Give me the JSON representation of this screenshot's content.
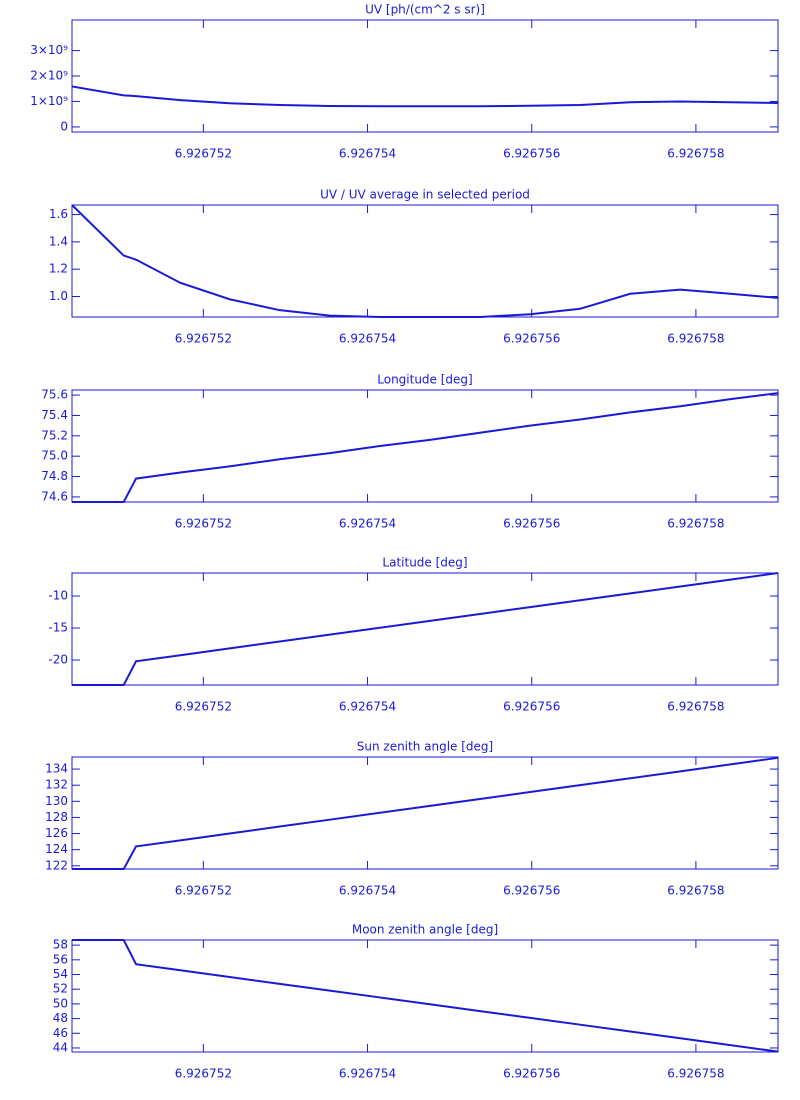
{
  "chart_data": [
    {
      "type": "line",
      "title": "UV [ph/(cm^2 s sr)]",
      "color": "#1a1ad6",
      "x": [
        6.9267504,
        6.92675103,
        6.92675118,
        6.92675172,
        6.92675232,
        6.92675293,
        6.92675354,
        6.92675415,
        6.92675476,
        6.92675537,
        6.92675598,
        6.92675659,
        6.9267572,
        6.92675781,
        6.92675842,
        6.926759
      ],
      "values": [
        1590000000,
        1240000000,
        1210000000,
        1050000000,
        930000000,
        860000000,
        820000000,
        810000000,
        810000000,
        810000000,
        830000000,
        860000000,
        970000000,
        1000000000,
        970000000,
        940000000
      ],
      "xlim": [
        6.9267504,
        6.926759
      ],
      "xticks": [
        6.926752,
        6.926754,
        6.926756,
        6.926758
      ],
      "ylim": [
        -200000000,
        4200000000
      ],
      "yticks": [
        0,
        {
          "value": 1000000000,
          "label": "1×10⁹"
        },
        {
          "value": 2000000000,
          "label": "2×10⁹"
        },
        {
          "value": 3000000000,
          "label": "3×10⁹"
        }
      ]
    },
    {
      "type": "line",
      "title": "UV / UV average in selected period",
      "color": "#1a1ad6",
      "x": [
        6.9267504,
        6.92675103,
        6.92675118,
        6.92675172,
        6.92675232,
        6.92675293,
        6.92675354,
        6.92675415,
        6.92675476,
        6.92675537,
        6.92675598,
        6.92675659,
        6.9267572,
        6.92675781,
        6.92675842,
        6.926759
      ],
      "values": [
        1.67,
        1.3,
        1.27,
        1.1,
        0.98,
        0.9,
        0.86,
        0.85,
        0.85,
        0.85,
        0.87,
        0.91,
        1.02,
        1.05,
        1.02,
        0.99
      ],
      "xlim": [
        6.9267504,
        6.926759
      ],
      "xticks": [
        6.926752,
        6.926754,
        6.926756,
        6.926758
      ],
      "ylim": [
        0.85,
        1.67
      ],
      "yticks": [
        {
          "value": 1,
          "label": "1.0"
        },
        1.2,
        1.4,
        1.6
      ]
    },
    {
      "type": "line",
      "title": "Longitude [deg]",
      "color": "#1a1ad6",
      "x": [
        6.9267504,
        6.92675103,
        6.92675118,
        6.92675172,
        6.92675232,
        6.92675293,
        6.92675354,
        6.92675415,
        6.92675476,
        6.92675537,
        6.92675598,
        6.92675659,
        6.9267572,
        6.92675781,
        6.92675842,
        6.926759
      ],
      "values": [
        74.55,
        74.55,
        74.78,
        74.84,
        74.9,
        74.97,
        75.03,
        75.1,
        75.16,
        75.23,
        75.3,
        75.36,
        75.43,
        75.49,
        75.56,
        75.62
      ],
      "xlim": [
        6.9267504,
        6.926759
      ],
      "xticks": [
        6.926752,
        6.926754,
        6.926756,
        6.926758
      ],
      "ylim": [
        74.55,
        75.65
      ],
      "yticks": [
        74.6,
        74.8,
        {
          "value": 75,
          "label": "75.0"
        },
        75.2,
        75.4,
        75.6
      ]
    },
    {
      "type": "line",
      "title": "Latitude [deg]",
      "color": "#1a1ad6",
      "x": [
        6.9267504,
        6.92675103,
        6.92675118,
        6.92675172,
        6.92675232,
        6.92675293,
        6.92675354,
        6.92675415,
        6.92675476,
        6.92675537,
        6.92675598,
        6.92675659,
        6.9267572,
        6.92675781,
        6.92675842,
        6.926759
      ],
      "values": [
        -23.9,
        -23.9,
        -20.2,
        -19.25,
        -18.18,
        -17.1,
        -16.03,
        -14.96,
        -13.88,
        -12.81,
        -11.73,
        -10.66,
        -9.58,
        -8.51,
        -7.43,
        -6.4
      ],
      "xlim": [
        6.9267504,
        6.926759
      ],
      "xticks": [
        6.926752,
        6.926754,
        6.926756,
        6.926758
      ],
      "ylim": [
        -23.9,
        -6.4
      ],
      "yticks": [
        -20,
        -15,
        -10
      ]
    },
    {
      "type": "line",
      "title": "Sun zenith angle [deg]",
      "color": "#1a1ad6",
      "x": [
        6.9267504,
        6.92675103,
        6.92675118,
        6.92675172,
        6.92675232,
        6.92675293,
        6.92675354,
        6.92675415,
        6.92675476,
        6.92675537,
        6.92675598,
        6.92675659,
        6.9267572,
        6.92675781,
        6.92675842,
        6.926759
      ],
      "values": [
        121.6,
        121.6,
        124.4,
        125.15,
        126.01,
        126.87,
        127.72,
        128.58,
        129.44,
        130.29,
        131.15,
        132.01,
        132.86,
        133.72,
        134.58,
        135.4
      ],
      "xlim": [
        6.9267504,
        6.926759
      ],
      "xticks": [
        6.926752,
        6.926754,
        6.926756,
        6.926758
      ],
      "ylim": [
        121.6,
        135.5
      ],
      "yticks": [
        122,
        124,
        126,
        128,
        130,
        132,
        134
      ]
    },
    {
      "type": "line",
      "title": "Moon zenith angle [deg]",
      "color": "#1a1ad6",
      "x": [
        6.9267504,
        6.92675103,
        6.92675118,
        6.92675172,
        6.92675232,
        6.92675293,
        6.92675354,
        6.92675415,
        6.92675476,
        6.92675537,
        6.92675598,
        6.92675659,
        6.9267572,
        6.92675781,
        6.92675842,
        6.926759
      ],
      "values": [
        58.7,
        58.7,
        55.4,
        54.58,
        53.66,
        52.73,
        51.8,
        50.88,
        49.95,
        49.02,
        48.1,
        47.17,
        46.24,
        45.32,
        44.39,
        43.5
      ],
      "xlim": [
        6.9267504,
        6.926759
      ],
      "xticks": [
        6.926752,
        6.926754,
        6.926756,
        6.926758
      ],
      "ylim": [
        43.45,
        58.7
      ],
      "yticks": [
        44,
        46,
        48,
        50,
        52,
        54,
        56,
        58
      ]
    }
  ]
}
